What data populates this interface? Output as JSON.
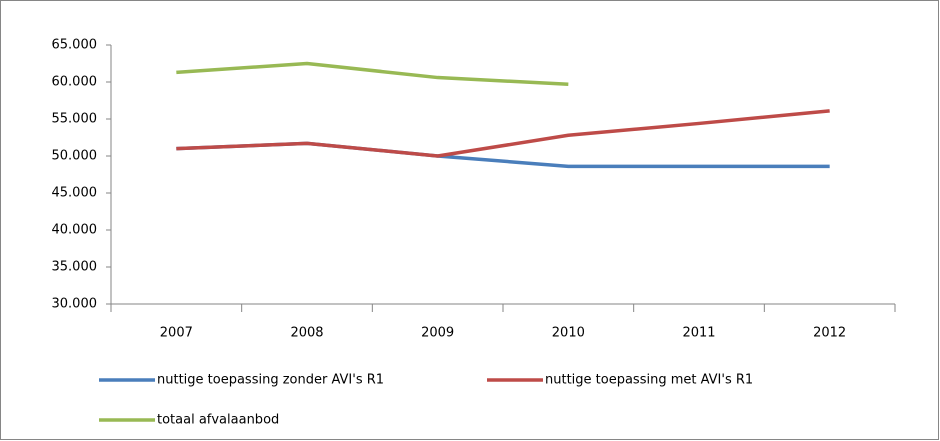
{
  "chart_data": {
    "type": "line",
    "categories": [
      "2007",
      "2008",
      "2009",
      "2010",
      "2011",
      "2012"
    ],
    "series": [
      {
        "name": "nuttige toepassing zonder AVI's R1",
        "color": "#4a7ebb",
        "values": [
          51000,
          51700,
          50000,
          48600,
          48600,
          48600
        ]
      },
      {
        "name": "nuttige toepassing met AVI's R1",
        "color": "#be4b48",
        "values": [
          51000,
          51700,
          50000,
          52800,
          54400,
          56100
        ]
      },
      {
        "name": "totaal afvalaanbod",
        "color": "#98b954",
        "values": [
          61300,
          62500,
          60600,
          59700,
          null,
          null
        ]
      }
    ],
    "ylim": [
      30000,
      65000
    ],
    "yticks": [
      {
        "value": 30000,
        "label": "30.000"
      },
      {
        "value": 35000,
        "label": "35.000"
      },
      {
        "value": 40000,
        "label": "40.000"
      },
      {
        "value": 45000,
        "label": "45.000"
      },
      {
        "value": 50000,
        "label": "50.000"
      },
      {
        "value": 55000,
        "label": "55.000"
      },
      {
        "value": 60000,
        "label": "60.000"
      },
      {
        "value": 65000,
        "label": "65.000"
      }
    ],
    "grid": false,
    "legend": "bottom"
  }
}
